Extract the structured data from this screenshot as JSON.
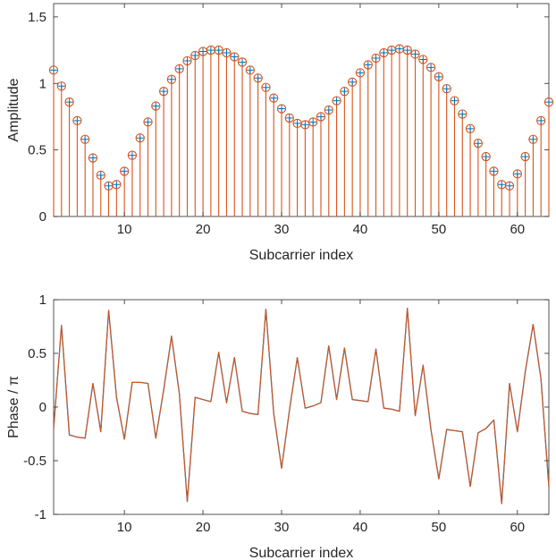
{
  "chart_data": [
    {
      "type": "stem",
      "xlabel": "Subcarrier index",
      "ylabel": "Amplitude",
      "xlim": [
        1,
        64
      ],
      "ylim": [
        0,
        1.6
      ],
      "xticks": [
        10,
        20,
        30,
        40,
        50,
        60
      ],
      "yticks": [
        0,
        0.5,
        1,
        1.5
      ],
      "ytick_labels": [
        "0",
        "0.5",
        "1",
        "1.5"
      ],
      "grid": false,
      "series": [
        {
          "marker": "circle",
          "color": "#d95319",
          "x": [
            1,
            2,
            3,
            4,
            5,
            6,
            7,
            8,
            9,
            10,
            11,
            12,
            13,
            14,
            15,
            16,
            17,
            18,
            19,
            20,
            21,
            22,
            23,
            24,
            25,
            26,
            27,
            28,
            29,
            30,
            31,
            32,
            33,
            34,
            35,
            36,
            37,
            38,
            39,
            40,
            41,
            42,
            43,
            44,
            45,
            46,
            47,
            48,
            49,
            50,
            51,
            52,
            53,
            54,
            55,
            56,
            57,
            58,
            59,
            60,
            61,
            62,
            63,
            64
          ],
          "values": [
            1.1,
            0.98,
            0.86,
            0.72,
            0.58,
            0.44,
            0.31,
            0.23,
            0.24,
            0.34,
            0.46,
            0.59,
            0.71,
            0.83,
            0.94,
            1.03,
            1.11,
            1.17,
            1.21,
            1.24,
            1.25,
            1.25,
            1.23,
            1.2,
            1.16,
            1.1,
            1.04,
            0.97,
            0.89,
            0.81,
            0.74,
            0.7,
            0.69,
            0.71,
            0.75,
            0.8,
            0.87,
            0.94,
            1.01,
            1.08,
            1.14,
            1.19,
            1.23,
            1.25,
            1.26,
            1.25,
            1.22,
            1.18,
            1.12,
            1.05,
            0.96,
            0.87,
            0.77,
            0.66,
            0.55,
            0.45,
            0.34,
            0.24,
            0.23,
            0.32,
            0.45,
            0.58,
            0.72,
            0.86
          ]
        },
        {
          "marker": "plus",
          "color": "#0072bd",
          "x": [
            1,
            2,
            3,
            4,
            5,
            6,
            7,
            8,
            9,
            10,
            11,
            12,
            13,
            14,
            15,
            16,
            17,
            18,
            19,
            20,
            21,
            22,
            23,
            24,
            25,
            26,
            27,
            28,
            29,
            30,
            31,
            32,
            33,
            34,
            35,
            36,
            37,
            38,
            39,
            40,
            41,
            42,
            43,
            44,
            45,
            46,
            47,
            48,
            49,
            50,
            51,
            52,
            53,
            54,
            55,
            56,
            57,
            58,
            59,
            60,
            61,
            62,
            63,
            64
          ],
          "values": [
            1.1,
            0.98,
            0.86,
            0.72,
            0.58,
            0.44,
            0.31,
            0.23,
            0.24,
            0.34,
            0.46,
            0.59,
            0.71,
            0.83,
            0.94,
            1.03,
            1.11,
            1.17,
            1.21,
            1.24,
            1.25,
            1.25,
            1.23,
            1.2,
            1.16,
            1.1,
            1.04,
            0.97,
            0.89,
            0.81,
            0.74,
            0.7,
            0.69,
            0.71,
            0.75,
            0.8,
            0.87,
            0.94,
            1.01,
            1.08,
            1.14,
            1.19,
            1.23,
            1.25,
            1.26,
            1.25,
            1.22,
            1.18,
            1.12,
            1.05,
            0.96,
            0.87,
            0.77,
            0.66,
            0.55,
            0.45,
            0.34,
            0.24,
            0.23,
            0.32,
            0.45,
            0.58,
            0.72,
            0.86
          ]
        }
      ]
    },
    {
      "type": "line",
      "xlabel": "Subcarrier index",
      "ylabel": "Phase / π",
      "xlim": [
        1,
        64
      ],
      "ylim": [
        -1,
        1
      ],
      "xticks": [
        10,
        20,
        30,
        40,
        50,
        60
      ],
      "yticks": [
        -1,
        -0.5,
        0,
        0.5,
        1
      ],
      "ytick_labels": [
        "-1",
        "-0.5",
        "0",
        "0.5",
        "1"
      ],
      "grid": false,
      "series": [
        {
          "color": "#0072bd",
          "x": [
            1,
            2,
            3,
            4,
            5,
            6,
            7,
            8,
            9,
            10,
            11,
            12,
            13,
            14,
            15,
            16,
            17,
            18,
            19,
            20,
            21,
            22,
            23,
            24,
            25,
            26,
            27,
            28,
            29,
            30,
            31,
            32,
            33,
            34,
            35,
            36,
            37,
            38,
            39,
            40,
            41,
            42,
            43,
            44,
            45,
            46,
            47,
            48,
            49,
            50,
            51,
            52,
            53,
            54,
            55,
            56,
            57,
            58,
            59,
            60,
            61,
            62,
            63,
            64
          ],
          "values": [
            -0.2,
            0.76,
            -0.26,
            -0.28,
            -0.29,
            0.22,
            -0.23,
            0.9,
            0.09,
            -0.3,
            0.23,
            0.23,
            0.22,
            -0.29,
            0.16,
            0.66,
            0.12,
            -0.88,
            0.09,
            0.07,
            0.05,
            0.51,
            0.04,
            0.46,
            -0.04,
            -0.06,
            -0.07,
            0.91,
            -0.06,
            -0.57,
            -0.03,
            0.46,
            -0.01,
            0.01,
            0.04,
            0.57,
            0.07,
            0.55,
            0.07,
            0.06,
            0.05,
            0.54,
            -0.01,
            -0.02,
            -0.04,
            0.92,
            -0.08,
            0.39,
            -0.21,
            -0.67,
            -0.21,
            -0.22,
            -0.23,
            -0.74,
            -0.24,
            -0.2,
            -0.12,
            -0.9,
            0.22,
            -0.23,
            0.33,
            0.77,
            0.26,
            -0.74
          ]
        },
        {
          "color": "#d95319",
          "x": [
            1,
            2,
            3,
            4,
            5,
            6,
            7,
            8,
            9,
            10,
            11,
            12,
            13,
            14,
            15,
            16,
            17,
            18,
            19,
            20,
            21,
            22,
            23,
            24,
            25,
            26,
            27,
            28,
            29,
            30,
            31,
            32,
            33,
            34,
            35,
            36,
            37,
            38,
            39,
            40,
            41,
            42,
            43,
            44,
            45,
            46,
            47,
            48,
            49,
            50,
            51,
            52,
            53,
            54,
            55,
            56,
            57,
            58,
            59,
            60,
            61,
            62,
            63,
            64
          ],
          "values": [
            -0.2,
            0.76,
            -0.26,
            -0.28,
            -0.29,
            0.22,
            -0.23,
            0.9,
            0.09,
            -0.3,
            0.23,
            0.23,
            0.22,
            -0.29,
            0.16,
            0.66,
            0.12,
            -0.88,
            0.09,
            0.07,
            0.05,
            0.51,
            0.04,
            0.46,
            -0.04,
            -0.06,
            -0.07,
            0.91,
            -0.06,
            -0.57,
            -0.03,
            0.46,
            -0.01,
            0.01,
            0.04,
            0.57,
            0.07,
            0.55,
            0.07,
            0.06,
            0.05,
            0.54,
            -0.01,
            -0.02,
            -0.04,
            0.92,
            -0.08,
            0.39,
            -0.21,
            -0.67,
            -0.21,
            -0.22,
            -0.23,
            -0.74,
            -0.24,
            -0.2,
            -0.12,
            -0.9,
            0.22,
            -0.23,
            0.33,
            0.77,
            0.26,
            -0.74
          ]
        }
      ]
    }
  ]
}
